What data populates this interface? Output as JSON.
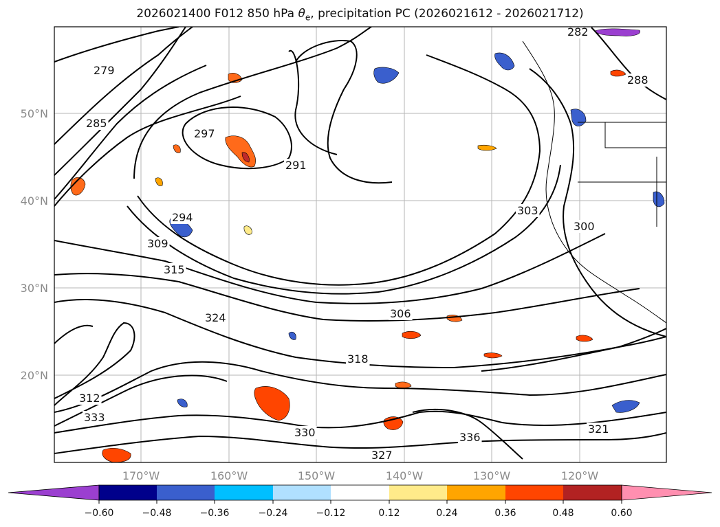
{
  "title": {
    "prefix": "2026021400 F012 850 hPa ",
    "theta_symbol": "θ",
    "theta_sub": "e",
    "suffix": ", precipitation PC (2026021612 - 2026021712)"
  },
  "axes": {
    "lat_ticks": [
      "50°N",
      "40°N",
      "30°N",
      "20°N"
    ],
    "lon_ticks": [
      "170°W",
      "160°W",
      "150°W",
      "140°W",
      "130°W",
      "120°W"
    ]
  },
  "contour_labels": [
    "279",
    "282",
    "285",
    "288",
    "291",
    "294",
    "297",
    "300",
    "303",
    "306",
    "309",
    "312",
    "315",
    "318",
    "321",
    "324",
    "327",
    "330",
    "333",
    "336"
  ],
  "colorbar": {
    "tick_labels": [
      "−0.60",
      "−0.48",
      "−0.36",
      "−0.24",
      "−0.12",
      "0.12",
      "0.24",
      "0.36",
      "0.48",
      "0.60"
    ],
    "colors": [
      "#9b3fd0",
      "#00008b",
      "#3a5fcd",
      "#00bfff",
      "#b0e0ff",
      "#ffffff",
      "#ffeb8a",
      "#ffa500",
      "#ff4500",
      "#b22222",
      "#ff8fb0"
    ]
  }
}
